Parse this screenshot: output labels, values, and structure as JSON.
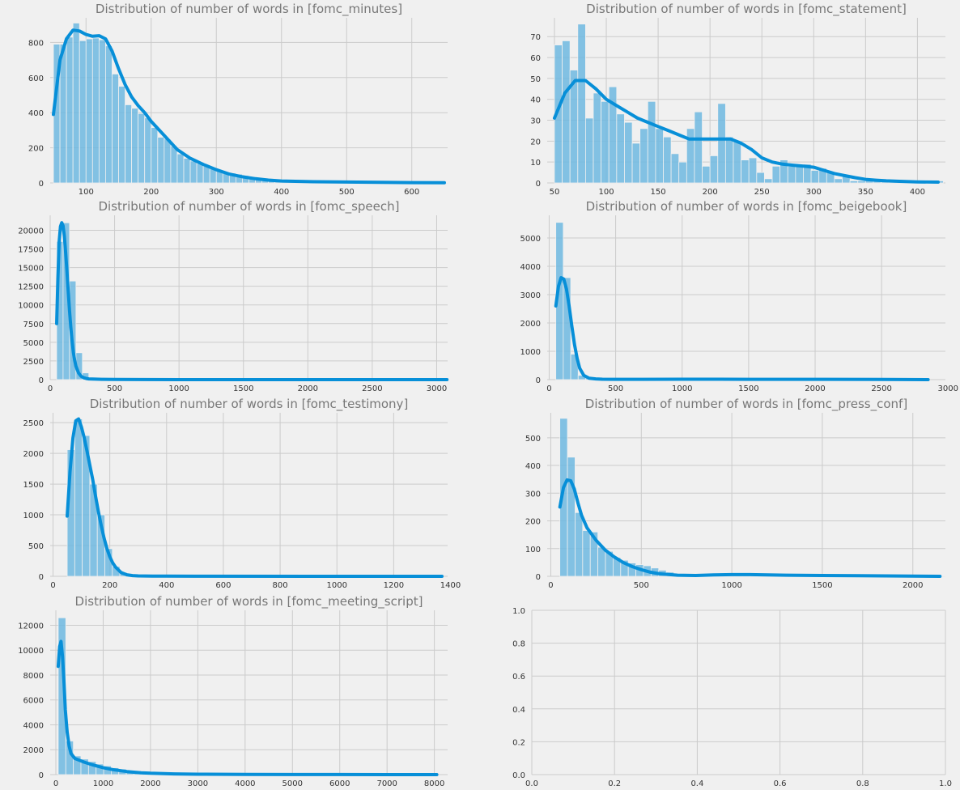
{
  "colors": {
    "background": "#f0f0f0",
    "bar": "#6fb8e0",
    "kde_line": "#078fd8",
    "grid": "#cbcbcb",
    "title_text": "#777777"
  },
  "chart_data": [
    {
      "type": "bar",
      "title": "Distribution of number of words in [fomc_minutes]",
      "xlim": [
        45,
        655
      ],
      "ylim": [
        0,
        940
      ],
      "xticks": [
        100,
        200,
        300,
        400,
        500,
        600
      ],
      "yticks": [
        0,
        200,
        400,
        600,
        800
      ],
      "bin_start": 50,
      "bin_width": 10,
      "values": [
        790,
        790,
        830,
        910,
        810,
        820,
        825,
        815,
        780,
        620,
        550,
        445,
        425,
        395,
        370,
        315,
        260,
        250,
        210,
        165,
        140,
        125,
        110,
        95,
        82,
        72,
        62,
        56,
        50,
        42,
        35,
        30,
        25,
        20,
        17,
        14,
        12,
        10,
        9,
        8,
        7,
        6,
        5,
        5,
        4,
        4,
        3,
        3,
        3,
        2,
        2,
        2,
        2,
        2,
        2,
        1,
        1,
        1,
        1,
        1,
        1
      ],
      "kde_x": [
        50,
        60,
        70,
        80,
        90,
        100,
        110,
        120,
        130,
        140,
        150,
        160,
        170,
        180,
        190,
        200,
        220,
        240,
        260,
        280,
        300,
        320,
        340,
        360,
        380,
        400,
        450,
        500,
        550,
        600,
        650
      ],
      "kde_y": [
        390,
        700,
        820,
        870,
        865,
        845,
        835,
        838,
        820,
        750,
        650,
        560,
        490,
        440,
        400,
        350,
        270,
        190,
        140,
        105,
        75,
        50,
        35,
        24,
        16,
        11,
        7,
        5,
        3,
        2,
        1
      ]
    },
    {
      "type": "bar",
      "title": "Distribution of number of words in [fomc_statement]",
      "xlim": [
        43,
        427
      ],
      "ylim": [
        0,
        79
      ],
      "xticks": [
        50,
        100,
        150,
        200,
        250,
        300,
        350,
        400
      ],
      "yticks": [
        0,
        10,
        20,
        30,
        40,
        50,
        60,
        70
      ],
      "bin_start": 50,
      "bin_width": 7.5,
      "values": [
        66,
        68,
        54,
        76,
        31,
        43,
        39,
        46,
        33,
        29,
        19,
        26,
        39,
        26,
        22,
        14,
        10,
        26,
        34,
        8,
        13,
        38,
        22,
        20,
        11,
        12,
        5,
        2,
        8,
        11,
        8,
        8,
        9,
        6,
        7,
        5,
        2,
        4,
        1,
        1,
        2,
        1,
        1,
        1,
        1,
        1,
        1,
        1,
        1,
        1
      ],
      "kde_x": [
        50,
        60,
        70,
        80,
        90,
        100,
        110,
        120,
        130,
        140,
        150,
        160,
        170,
        180,
        190,
        200,
        210,
        220,
        230,
        240,
        250,
        260,
        270,
        280,
        290,
        300,
        310,
        320,
        330,
        340,
        350,
        360,
        370,
        380,
        400,
        420
      ],
      "kde_y": [
        31,
        43,
        49,
        49,
        45,
        40,
        37,
        34,
        31,
        29,
        27,
        25,
        23,
        21,
        21,
        21,
        21,
        21,
        19,
        16,
        12,
        10,
        9,
        8.5,
        8,
        7.5,
        6,
        4.5,
        3.5,
        2.5,
        1.7,
        1.3,
        1,
        0.8,
        0.5,
        0.4
      ]
    },
    {
      "type": "bar",
      "title": "Distribution of number of words in [fomc_speech]",
      "xlim": [
        0,
        3085
      ],
      "ylim": [
        0,
        22000
      ],
      "xticks": [
        0,
        500,
        1000,
        1500,
        2000,
        2500,
        3000
      ],
      "yticks": [
        0,
        2500,
        5000,
        7500,
        10000,
        12500,
        15000,
        17500,
        20000
      ],
      "bin_start": 50,
      "bin_width": 50,
      "values": [
        18500,
        21000,
        13200,
        3600,
        900,
        250,
        100,
        50,
        30,
        20,
        15,
        10,
        8,
        6,
        5,
        5,
        4,
        4,
        3,
        3,
        3,
        2,
        2,
        2,
        2,
        2,
        2,
        1,
        1,
        1,
        1,
        1,
        1,
        1,
        1,
        1,
        1,
        1,
        1,
        1,
        1,
        1,
        1,
        1,
        1,
        1,
        1,
        1,
        1,
        1,
        1,
        1,
        1,
        1,
        1,
        1,
        1,
        1,
        1,
        1
      ],
      "kde_x": [
        50,
        60,
        70,
        80,
        90,
        100,
        110,
        120,
        130,
        140,
        150,
        160,
        170,
        180,
        190,
        200,
        220,
        240,
        260,
        280,
        300,
        350,
        400,
        500,
        700,
        1000,
        3080
      ],
      "kde_y": [
        7500,
        13500,
        18500,
        20500,
        21000,
        20600,
        19200,
        17000,
        14500,
        11800,
        9200,
        7000,
        5100,
        3700,
        2600,
        1800,
        900,
        450,
        250,
        150,
        100,
        60,
        40,
        20,
        10,
        5,
        0
      ]
    },
    {
      "type": "bar",
      "title": "Distribution of number of words in [fomc_beigebook]",
      "xlim": [
        -15,
        2980
      ],
      "ylim": [
        0,
        5800
      ],
      "xticks": [
        0,
        500,
        1000,
        1500,
        2000,
        2500,
        3000
      ],
      "yticks": [
        0,
        1000,
        2000,
        3000,
        4000,
        5000
      ],
      "bin_start": 50,
      "bin_width": 56,
      "values": [
        5550,
        3600,
        900,
        150,
        40,
        20,
        10,
        8,
        6,
        5,
        4,
        3,
        3,
        2,
        2,
        2,
        2,
        1,
        1,
        1,
        1,
        1,
        1,
        1,
        1,
        1,
        1,
        1,
        1,
        1,
        1,
        1,
        1,
        1,
        1,
        1,
        1,
        1,
        1,
        1,
        1,
        1,
        1,
        1,
        1,
        1,
        1,
        1,
        1,
        1
      ],
      "kde_x": [
        50,
        70,
        90,
        110,
        130,
        150,
        170,
        190,
        210,
        230,
        260,
        300,
        350,
        400,
        500,
        700,
        1000,
        1500,
        2000,
        2500,
        2850
      ],
      "kde_y": [
        2600,
        3300,
        3600,
        3550,
        3200,
        2600,
        1900,
        1250,
        750,
        400,
        150,
        50,
        25,
        15,
        10,
        10,
        15,
        10,
        10,
        5,
        0
      ]
    },
    {
      "type": "bar",
      "title": "Distribution of number of words in [fomc_testimony]",
      "xlim": [
        -10,
        1390
      ],
      "ylim": [
        0,
        2660
      ],
      "xticks": [
        0,
        200,
        400,
        600,
        800,
        1000,
        1200,
        1400
      ],
      "yticks": [
        0,
        500,
        1000,
        1500,
        2000,
        2500
      ],
      "bin_start": 50,
      "bin_width": 26.5,
      "values": [
        2060,
        2560,
        2290,
        1500,
        1000,
        450,
        160,
        60,
        30,
        20,
        15,
        12,
        10,
        8,
        7,
        6,
        5,
        4,
        4,
        3,
        3,
        2,
        2,
        2,
        2,
        2,
        2,
        1,
        1,
        1,
        1,
        1,
        1,
        1,
        1,
        1,
        1,
        1,
        1,
        1,
        1,
        1,
        1,
        1,
        1,
        1,
        1,
        1,
        1,
        1
      ],
      "kde_x": [
        50,
        60,
        70,
        80,
        90,
        100,
        110,
        120,
        130,
        140,
        150,
        160,
        170,
        180,
        190,
        200,
        210,
        220,
        240,
        260,
        280,
        300,
        350,
        400,
        500,
        1370
      ],
      "kde_y": [
        980,
        1700,
        2250,
        2530,
        2560,
        2430,
        2250,
        2030,
        1800,
        1570,
        1300,
        1050,
        820,
        620,
        450,
        320,
        220,
        150,
        60,
        25,
        12,
        6,
        3,
        2,
        1,
        0
      ]
    },
    {
      "type": "bar",
      "title": "Distribution of number of words in [fomc_press_conf]",
      "xlim": [
        -20,
        2180
      ],
      "ylim": [
        0,
        590
      ],
      "xticks": [
        0,
        500,
        1000,
        1500,
        2000
      ],
      "yticks": [
        0,
        100,
        200,
        300,
        400,
        500
      ],
      "bin_start": 50,
      "bin_width": 42,
      "values": [
        570,
        430,
        230,
        165,
        160,
        105,
        90,
        68,
        58,
        48,
        42,
        38,
        30,
        22,
        15,
        10,
        7,
        5,
        4,
        3,
        3,
        3,
        2,
        2,
        2,
        2,
        2,
        2,
        1,
        1,
        1,
        1,
        1,
        1,
        1,
        1,
        1,
        1,
        1,
        1,
        1,
        1,
        1,
        1,
        1,
        1,
        1,
        1,
        1,
        1,
        1
      ],
      "kde_x": [
        50,
        70,
        90,
        110,
        130,
        150,
        170,
        200,
        250,
        300,
        350,
        400,
        450,
        500,
        550,
        600,
        700,
        800,
        900,
        1000,
        1100,
        1200,
        1300,
        1500,
        1700,
        2000,
        2150
      ],
      "kde_y": [
        250,
        320,
        348,
        345,
        315,
        265,
        220,
        175,
        130,
        95,
        70,
        50,
        35,
        24,
        15,
        9,
        4,
        3,
        5,
        6,
        6,
        5,
        4,
        3,
        2,
        1,
        0
      ]
    },
    {
      "type": "bar",
      "title": "Distribution of number of words in [fomc_meeting_script]",
      "xlim": [
        -120,
        8280
      ],
      "ylim": [
        0,
        13200
      ],
      "xticks": [
        0,
        1000,
        2000,
        3000,
        4000,
        5000,
        6000,
        7000,
        8000
      ],
      "yticks": [
        0,
        2000,
        4000,
        6000,
        8000,
        10000,
        12000
      ],
      "bin_start": 50,
      "bin_width": 160,
      "values": [
        12600,
        2700,
        1500,
        1250,
        1050,
        850,
        700,
        550,
        450,
        350,
        300,
        250,
        200,
        160,
        120,
        90,
        70,
        55,
        45,
        35,
        30,
        25,
        20,
        18,
        15,
        12,
        10,
        8,
        7,
        6,
        5,
        5,
        4,
        4,
        3,
        3,
        3,
        2,
        2,
        2,
        2,
        2,
        2,
        1,
        1,
        1,
        1,
        1,
        1,
        1
      ],
      "kde_x": [
        50,
        80,
        110,
        140,
        170,
        200,
        240,
        280,
        320,
        400,
        500,
        600,
        700,
        800,
        1000,
        1200,
        1500,
        1800,
        2000,
        2500,
        3000,
        4000,
        5000,
        6000,
        7000,
        8050
      ],
      "kde_y": [
        8700,
        10300,
        10700,
        9500,
        7500,
        5200,
        3400,
        2300,
        1700,
        1300,
        1150,
        1000,
        880,
        760,
        560,
        400,
        250,
        150,
        110,
        60,
        30,
        12,
        6,
        4,
        2,
        1
      ]
    },
    {
      "type": "bar",
      "title": "",
      "xlim": [
        0,
        1
      ],
      "ylim": [
        0,
        1
      ],
      "xticks": [
        0.0,
        0.2,
        0.4,
        0.6,
        0.8,
        1.0
      ],
      "yticks": [
        0.0,
        0.2,
        0.4,
        0.6,
        0.8,
        1.0
      ],
      "tick_labels_x": [
        "0.0",
        "0.2",
        "0.4",
        "0.6",
        "0.8",
        "1.0"
      ],
      "tick_labels_y": [
        "0.0",
        "0.2",
        "0.4",
        "0.6",
        "0.8",
        "1.0"
      ],
      "values": [],
      "empty": true
    }
  ]
}
